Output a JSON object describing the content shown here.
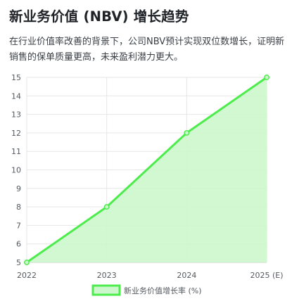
{
  "header": {
    "title": "新业务价值 (NBV) 增长趋势",
    "description": "在行业价值率改善的背景下，公司NBV预计实现双位数增长，证明新销售的保单质量更高，未来盈利潜力更大。"
  },
  "colors": {
    "line": "#4dec4d",
    "fill": "#ccf7cc",
    "grid": "#e6e6e6",
    "axis": "#c8c8c8"
  },
  "chart_data": {
    "type": "area",
    "categories": [
      "2022",
      "2023",
      "2024",
      "2025 (E)"
    ],
    "series": [
      {
        "name": "新业务价值增长率 (%)",
        "values": [
          5,
          8,
          12,
          15
        ]
      }
    ],
    "ylim": [
      5,
      15
    ],
    "yticks": [
      "5",
      "6",
      "7",
      "8",
      "9",
      "10",
      "11",
      "12",
      "13",
      "14",
      "15"
    ],
    "grid": true,
    "legend_position": "bottom"
  }
}
